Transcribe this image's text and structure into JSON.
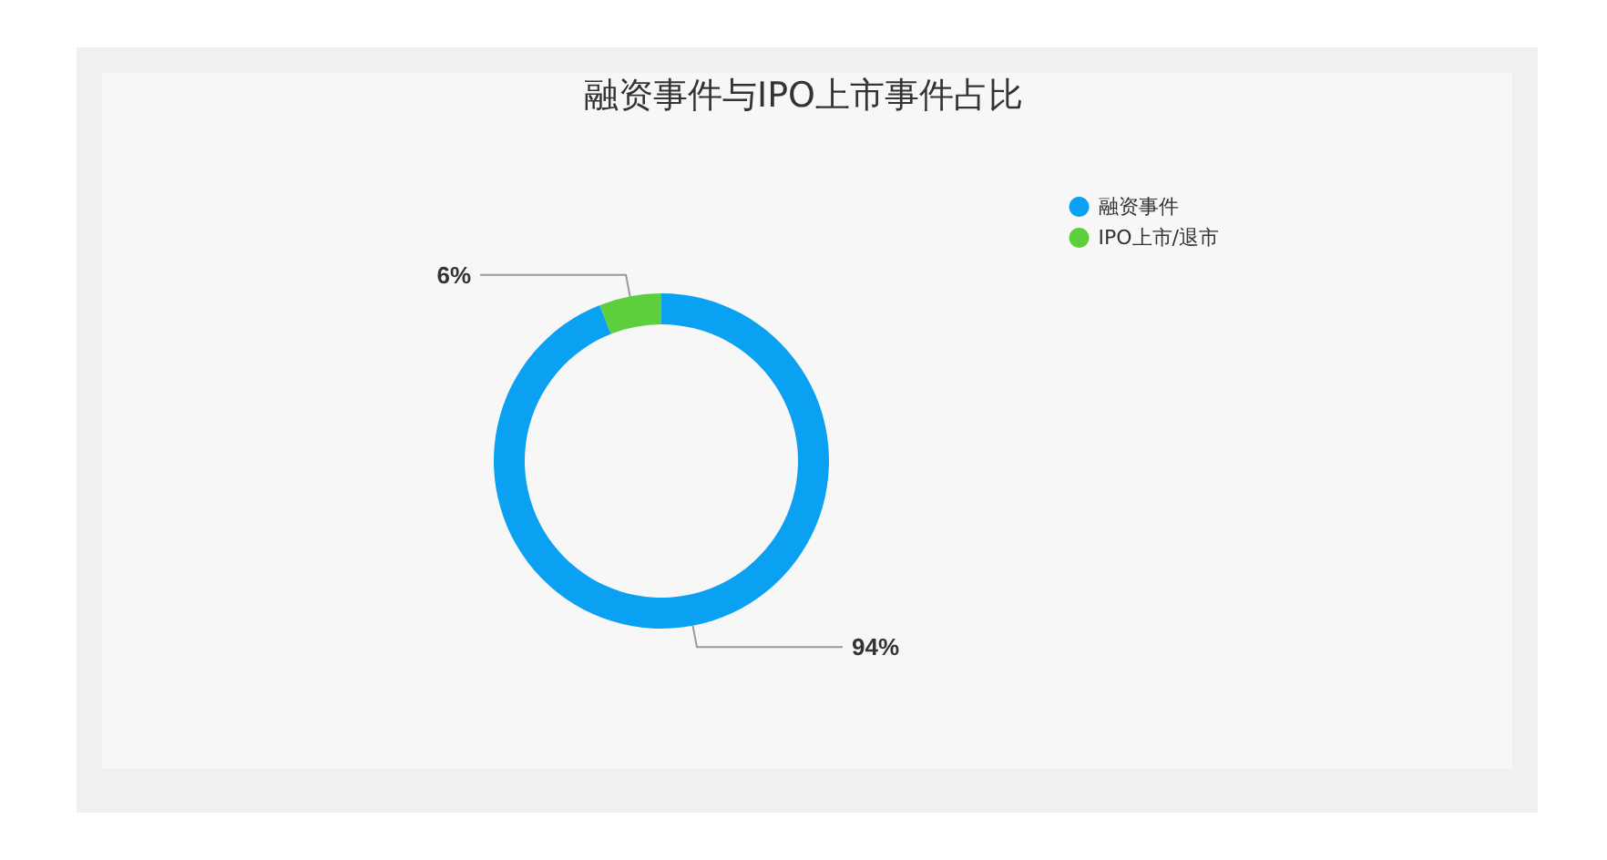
{
  "chart_data": {
    "type": "donut",
    "title": "融资事件与IPO上市事件占比",
    "categories": [
      "融资事件",
      "IPO上市/退市"
    ],
    "values": [
      94,
      6
    ],
    "colors": [
      "#0aa1f2",
      "#5dcf3d"
    ],
    "value_labels": [
      "94%",
      "6%"
    ],
    "legend": "top right"
  }
}
